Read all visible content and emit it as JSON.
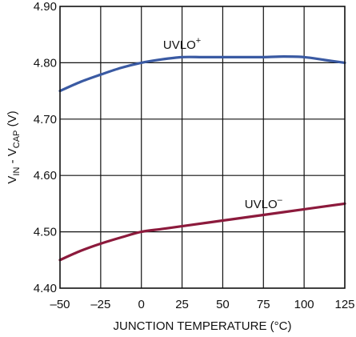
{
  "chart_data": {
    "type": "line",
    "title": "",
    "xlabel": "JUNCTION TEMPERATURE (°C)",
    "ylabel": {
      "parts": [
        {
          "text": "V",
          "sub": false
        },
        {
          "text": "IN",
          "sub": true
        },
        {
          "text": " - V",
          "sub": false
        },
        {
          "text": "CAP",
          "sub": true
        },
        {
          "text": " (V)",
          "sub": false
        }
      ]
    },
    "xlim": [
      -50,
      125
    ],
    "ylim": [
      4.4,
      4.9
    ],
    "x_ticks": [
      "–50",
      "–25",
      "0",
      "25",
      "50",
      "75",
      "100",
      "125"
    ],
    "y_ticks": [
      "4.40",
      "4.50",
      "4.60",
      "4.70",
      "4.80",
      "4.90"
    ],
    "grid": true,
    "series": [
      {
        "name": "UVLO",
        "name_sup": "+",
        "color": "#3a5aa3",
        "label_at": [
          25,
          4.825
        ],
        "points": [
          [
            -50,
            4.75
          ],
          [
            -37.5,
            4.766
          ],
          [
            -25,
            4.779
          ],
          [
            -12.5,
            4.791
          ],
          [
            0,
            4.8
          ],
          [
            12.5,
            4.806
          ],
          [
            25,
            4.81
          ],
          [
            37.5,
            4.81
          ],
          [
            50,
            4.81
          ],
          [
            62.5,
            4.81
          ],
          [
            75,
            4.81
          ],
          [
            87.5,
            4.811
          ],
          [
            100,
            4.81
          ],
          [
            112.5,
            4.805
          ],
          [
            125,
            4.8
          ]
        ]
      },
      {
        "name": "UVLO",
        "name_sup": "–",
        "color": "#8c1a3c",
        "label_at": [
          75,
          4.542
        ],
        "points": [
          [
            -50,
            4.45
          ],
          [
            -37.5,
            4.466
          ],
          [
            -25,
            4.479
          ],
          [
            -12.5,
            4.49
          ],
          [
            0,
            4.5
          ],
          [
            12.5,
            4.505
          ],
          [
            25,
            4.51
          ],
          [
            50,
            4.52
          ],
          [
            75,
            4.53
          ],
          [
            100,
            4.54
          ],
          [
            125,
            4.55
          ]
        ]
      }
    ]
  }
}
